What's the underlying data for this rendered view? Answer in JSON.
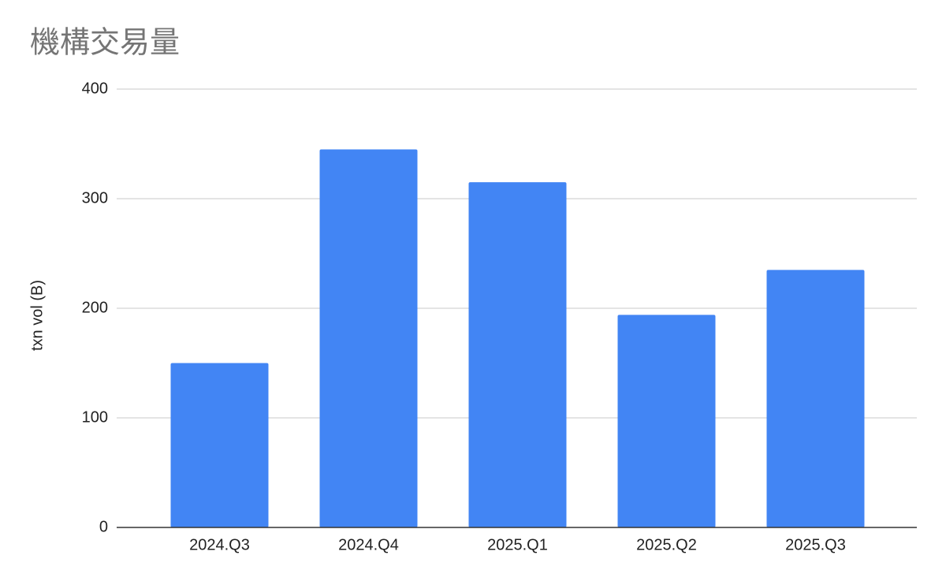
{
  "chart_data": {
    "type": "bar",
    "title": "機構交易量",
    "y_label": "txn vol (B)",
    "categories": [
      "2024.Q3",
      "2024.Q4",
      "2025.Q1",
      "2025.Q2",
      "2025.Q3"
    ],
    "values": [
      150,
      345,
      315,
      194,
      235
    ],
    "color": "#4285f4",
    "ylim": [
      0,
      400
    ],
    "yticks": [
      0,
      100,
      200,
      300,
      400
    ],
    "grid": true
  }
}
